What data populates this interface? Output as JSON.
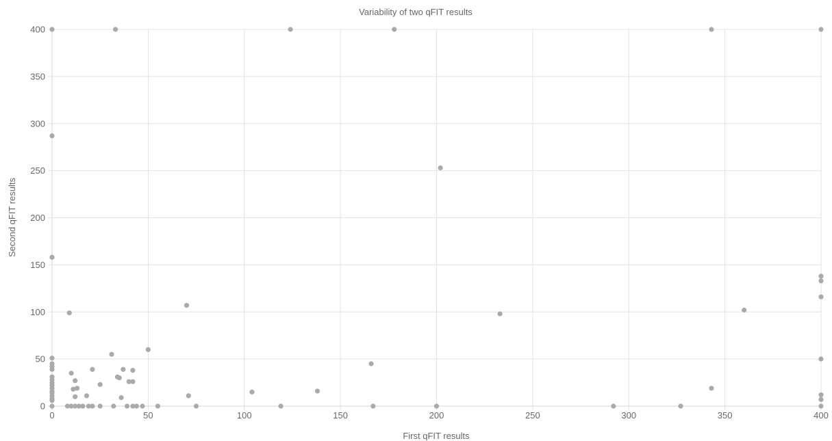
{
  "chart_data": {
    "type": "scatter",
    "title": "Variability of two qFIT results",
    "xlabel": "First qFIT results",
    "ylabel": "Second qFIT results",
    "xlim": [
      0,
      400
    ],
    "ylim": [
      0,
      400
    ],
    "x_ticks": [
      0,
      50,
      100,
      150,
      200,
      250,
      300,
      350,
      400
    ],
    "y_ticks": [
      0,
      50,
      100,
      150,
      200,
      250,
      300,
      350,
      400
    ],
    "grid": true,
    "legend": "none",
    "point_color": "#aaaaaa",
    "points": [
      [
        0,
        400
      ],
      [
        33,
        400
      ],
      [
        124,
        400
      ],
      [
        178,
        400
      ],
      [
        343,
        400
      ],
      [
        400,
        400
      ],
      [
        0,
        287
      ],
      [
        202,
        253
      ],
      [
        0,
        158
      ],
      [
        70,
        107
      ],
      [
        9,
        99
      ],
      [
        233,
        98
      ],
      [
        360,
        102
      ],
      [
        400,
        138
      ],
      [
        400,
        133
      ],
      [
        400,
        116
      ],
      [
        400,
        50
      ],
      [
        400,
        12
      ],
      [
        400,
        7
      ],
      [
        400,
        0
      ],
      [
        0,
        51
      ],
      [
        0,
        45
      ],
      [
        0,
        42
      ],
      [
        0,
        39
      ],
      [
        0,
        31
      ],
      [
        0,
        28
      ],
      [
        0,
        25
      ],
      [
        0,
        22
      ],
      [
        0,
        19
      ],
      [
        0,
        16
      ],
      [
        0,
        14
      ],
      [
        0,
        11
      ],
      [
        0,
        8
      ],
      [
        0,
        6
      ],
      [
        0,
        0
      ],
      [
        10,
        35
      ],
      [
        11,
        18
      ],
      [
        12,
        27
      ],
      [
        12,
        10
      ],
      [
        13,
        19
      ],
      [
        18,
        11
      ],
      [
        21,
        39
      ],
      [
        25,
        23
      ],
      [
        31,
        55
      ],
      [
        34,
        31
      ],
      [
        35,
        30
      ],
      [
        36,
        9
      ],
      [
        37,
        39
      ],
      [
        40,
        26
      ],
      [
        42,
        38
      ],
      [
        42,
        26
      ],
      [
        50,
        60
      ],
      [
        71,
        11
      ],
      [
        104,
        15
      ],
      [
        138,
        16
      ],
      [
        166,
        45
      ],
      [
        343,
        19
      ],
      [
        8,
        0
      ],
      [
        10,
        0
      ],
      [
        12,
        0
      ],
      [
        14,
        0
      ],
      [
        16,
        0
      ],
      [
        19,
        0
      ],
      [
        21,
        0
      ],
      [
        25,
        0
      ],
      [
        32,
        0
      ],
      [
        39,
        0
      ],
      [
        42,
        0
      ],
      [
        44,
        0
      ],
      [
        47,
        0
      ],
      [
        55,
        0
      ],
      [
        75,
        0
      ],
      [
        119,
        0
      ],
      [
        167,
        0
      ],
      [
        200,
        0
      ],
      [
        292,
        0
      ],
      [
        327,
        0
      ]
    ]
  }
}
